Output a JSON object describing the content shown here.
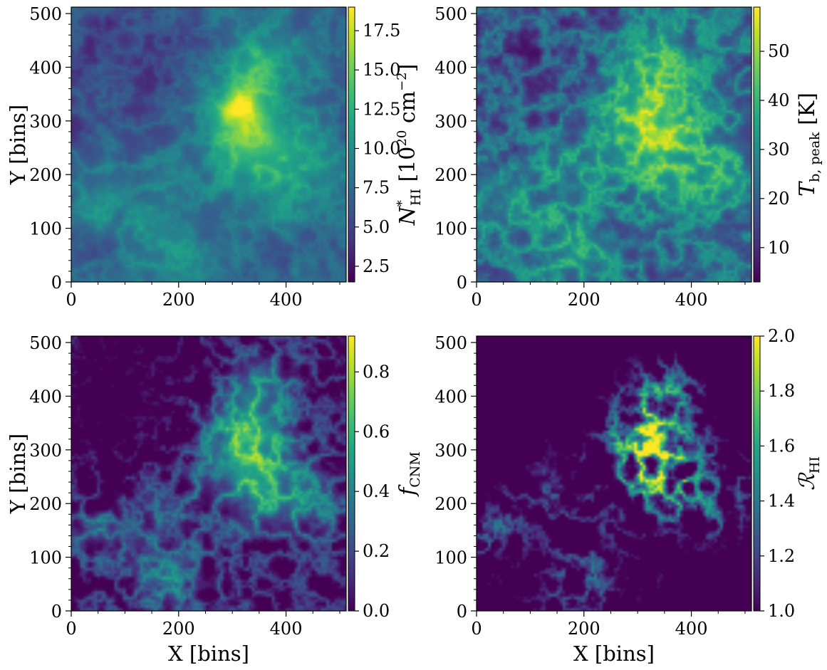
{
  "chart_data": [
    {
      "type": "heatmap",
      "panel": "top-left",
      "xlabel": "",
      "ylabel": "Y [bins]",
      "xlim": [
        0,
        512
      ],
      "ylim": [
        0,
        512
      ],
      "xticks": [
        0,
        200,
        400
      ],
      "yticks": [
        0,
        100,
        200,
        300,
        400,
        500
      ],
      "xtick_labels": [
        "0",
        "200",
        "400"
      ],
      "ytick_labels": [
        "0",
        "100",
        "200",
        "300",
        "400",
        "500"
      ],
      "colormap": "viridis",
      "colorbar": {
        "range": [
          1.5,
          19
        ],
        "ticks": [
          2.5,
          5.0,
          7.5,
          10.0,
          12.5,
          15.0,
          17.5
        ],
        "tick_labels": [
          "2.5",
          "5.0",
          "7.5",
          "10.0",
          "12.5",
          "15.0",
          "17.5"
        ],
        "label_main": "N",
        "label_sub": "HI",
        "label_sup": "*",
        "label_unit_pre": " [10",
        "label_unit_exp": "20",
        "label_unit_mid": " cm",
        "label_unit_exp2": "−2",
        "label_unit_post": "]"
      }
    },
    {
      "type": "heatmap",
      "panel": "top-right",
      "xlabel": "",
      "ylabel": "",
      "xlim": [
        0,
        512
      ],
      "ylim": [
        0,
        512
      ],
      "xticks": [
        0,
        200,
        400
      ],
      "yticks": [
        0,
        100,
        200,
        300,
        400,
        500
      ],
      "xtick_labels": [
        "0",
        "200",
        "400"
      ],
      "ytick_labels": [
        "0",
        "100",
        "200",
        "300",
        "400",
        "500"
      ],
      "colormap": "viridis",
      "colorbar": {
        "range": [
          3,
          59
        ],
        "ticks": [
          10,
          20,
          30,
          40,
          50
        ],
        "tick_labels": [
          "10",
          "20",
          "30",
          "40",
          "50"
        ],
        "label_main": "T",
        "label_sub": "b, peak",
        "label_unit_post": " [K]"
      }
    },
    {
      "type": "heatmap",
      "panel": "bottom-left",
      "xlabel": "X [bins]",
      "ylabel": "Y [bins]",
      "xlim": [
        0,
        512
      ],
      "ylim": [
        0,
        512
      ],
      "xticks": [
        0,
        200,
        400
      ],
      "yticks": [
        0,
        100,
        200,
        300,
        400,
        500
      ],
      "xtick_labels": [
        "0",
        "200",
        "400"
      ],
      "ytick_labels": [
        "0",
        "100",
        "200",
        "300",
        "400",
        "500"
      ],
      "colormap": "viridis",
      "colorbar": {
        "range": [
          0,
          0.92
        ],
        "ticks": [
          0.0,
          0.2,
          0.4,
          0.6,
          0.8
        ],
        "tick_labels": [
          "0.0",
          "0.2",
          "0.4",
          "0.6",
          "0.8"
        ],
        "label_main": "f",
        "label_sub": "CNM"
      }
    },
    {
      "type": "heatmap",
      "panel": "bottom-right",
      "xlabel": "X [bins]",
      "ylabel": "",
      "xlim": [
        0,
        512
      ],
      "ylim": [
        0,
        512
      ],
      "xticks": [
        0,
        200,
        400
      ],
      "yticks": [
        0,
        100,
        200,
        300,
        400,
        500
      ],
      "xtick_labels": [
        "0",
        "200",
        "400"
      ],
      "ytick_labels": [
        "0",
        "100",
        "200",
        "300",
        "400",
        "500"
      ],
      "colormap": "viridis",
      "colorbar": {
        "range": [
          1.0,
          2.0
        ],
        "ticks": [
          1.0,
          1.2,
          1.4,
          1.6,
          1.8,
          2.0
        ],
        "tick_labels": [
          "1.0",
          "1.2",
          "1.4",
          "1.6",
          "1.8",
          "2.0"
        ],
        "label_main": "ℛ",
        "label_sub": "HI"
      }
    }
  ]
}
